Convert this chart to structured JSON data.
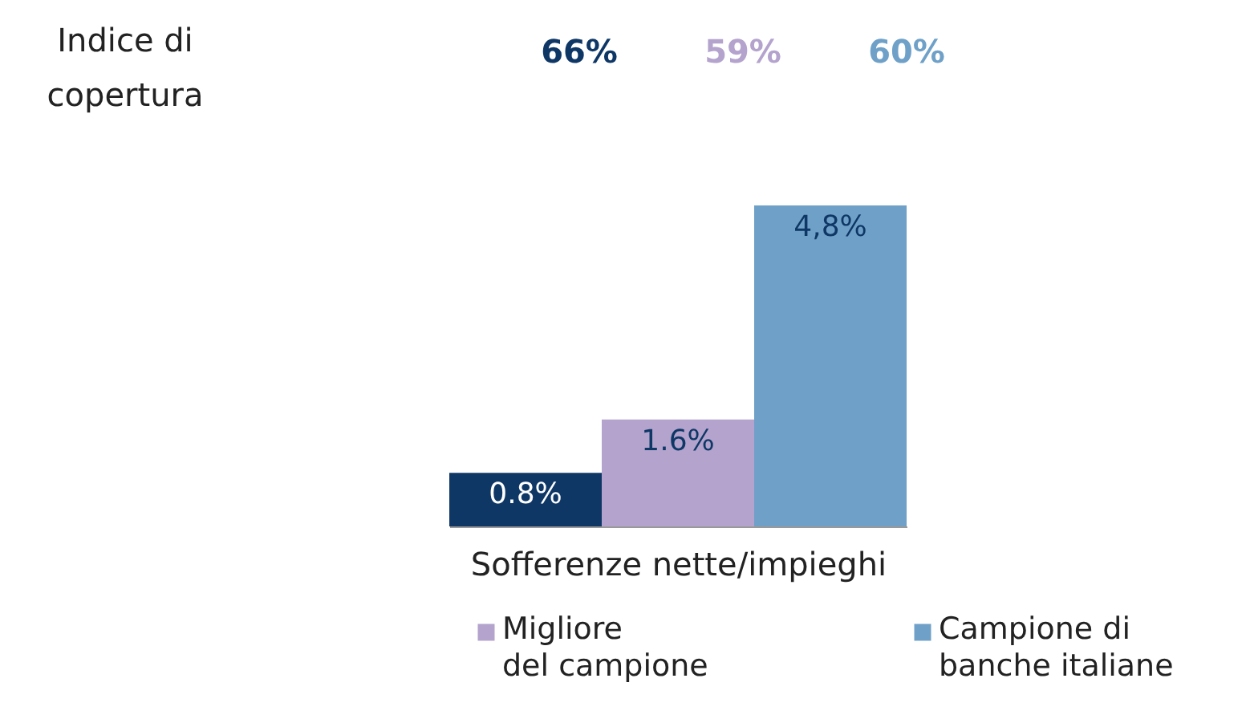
{
  "chart_data": {
    "type": "bar",
    "categories": [
      null,
      null,
      null
    ],
    "xlabel": "Sofferenze nette/impieghi",
    "stacked": true,
    "series": [
      {
        "color": "#0e3766",
        "values": [
          0.8,
          null,
          null
        ],
        "value_labels": [
          "0.8%",
          null,
          null
        ]
      },
      {
        "name": "Migliore del campione",
        "color": "#b4a3cd",
        "values": [
          null,
          1.6,
          null
        ],
        "value_labels": [
          null,
          "1.6%",
          null
        ]
      },
      {
        "name": "Campione di banche italiane",
        "color": "#6fa1c8",
        "values": [
          null,
          null,
          4.8
        ],
        "value_labels": [
          null,
          null,
          "4,8%"
        ]
      }
    ],
    "annotations": [
      "Indice di copertura",
      "66%",
      "59%",
      "60%"
    ],
    "legend": "bottom",
    "tick_labels": false
  }
}
